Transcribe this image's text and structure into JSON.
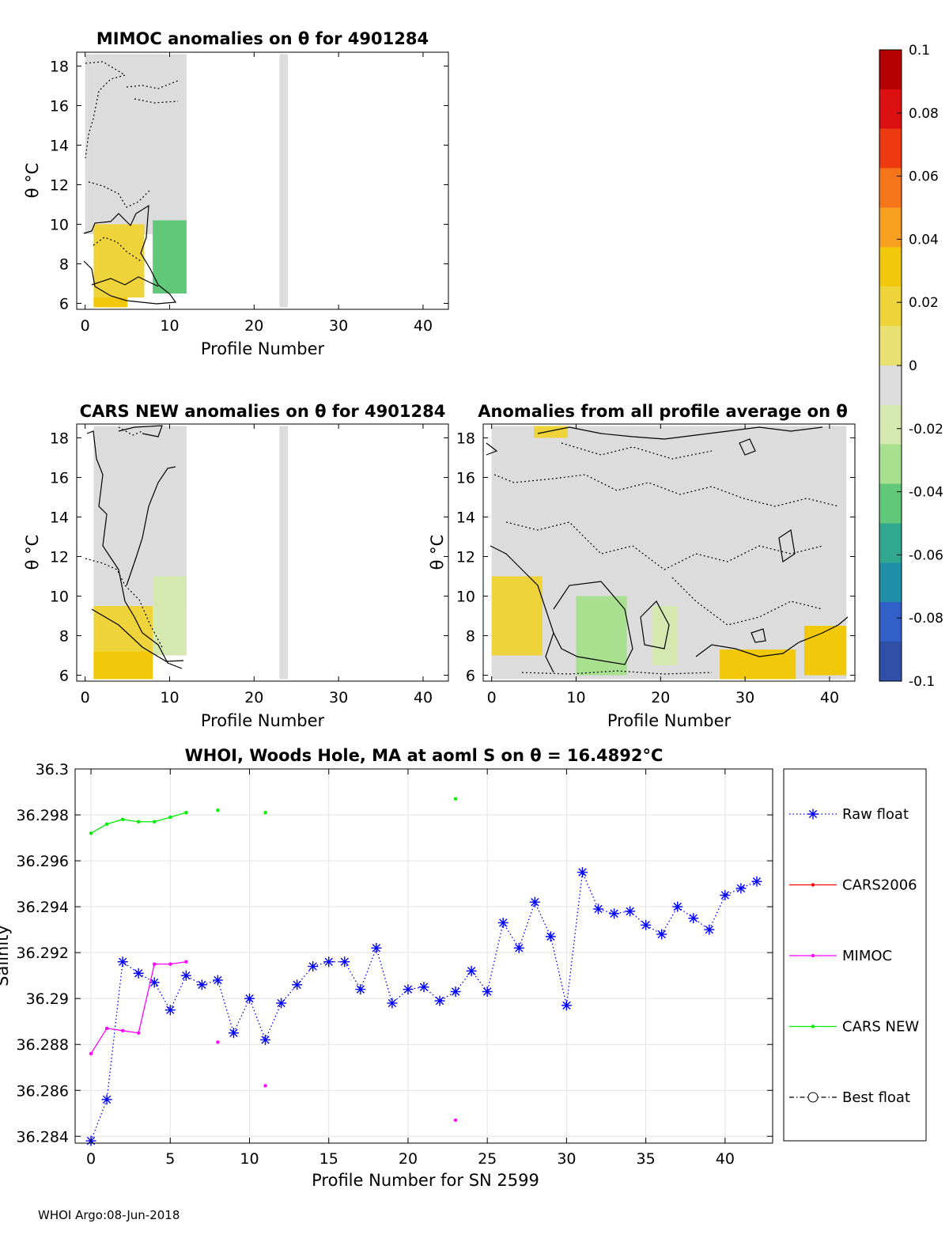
{
  "footer": "WHOI Argo:08-Jun-2018",
  "colorbar": {
    "ticks": [
      "0.1",
      "0.08",
      "0.06",
      "0.04",
      "0.02",
      "0",
      "-0.02",
      "-0.04",
      "-0.06",
      "-0.08",
      "-0.1"
    ],
    "colors": [
      "#b40000",
      "#dc1010",
      "#ee3a10",
      "#f67518",
      "#f9a020",
      "#f2c80a",
      "#eed33a",
      "#e8e070",
      "#dcdcdc",
      "#d4e8b0",
      "#a8e090",
      "#60c878",
      "#30a890",
      "#2090a8",
      "#3060c8",
      "#3050a8"
    ]
  },
  "chart_data": [
    {
      "id": "mimoc",
      "type": "heatmap",
      "title": "MIMOC anomalies on θ  for 4901284",
      "xlabel": "Profile Number",
      "ylabel": "θ °C",
      "xlim": [
        -1,
        43
      ],
      "ylim": [
        5.7,
        18.7
      ],
      "xticks": [
        "0",
        "10",
        "20",
        "30",
        "40"
      ],
      "yticks": [
        "6",
        "8",
        "10",
        "12",
        "14",
        "16",
        "18"
      ],
      "anomaly_regions": [
        {
          "x": [
            1,
            12
          ],
          "theta": [
            9.5,
            18.6
          ],
          "anomaly": 0.0
        },
        {
          "x": [
            0,
            1
          ],
          "theta": [
            9.5,
            18.6
          ],
          "anomaly": 0.0
        },
        {
          "x": [
            1,
            7
          ],
          "theta": [
            6.3,
            10.0
          ],
          "anomaly": 0.025
        },
        {
          "x": [
            1,
            5
          ],
          "theta": [
            5.8,
            6.3
          ],
          "anomaly": 0.035
        },
        {
          "x": [
            8,
            12
          ],
          "theta": [
            6.5,
            10.2
          ],
          "anomaly": -0.04
        },
        {
          "x": [
            23,
            24
          ],
          "theta": [
            5.8,
            18.6
          ],
          "anomaly": -0.01
        }
      ]
    },
    {
      "id": "cars",
      "type": "heatmap",
      "title": "CARS NEW anomalies on θ for 4901284",
      "xlabel": "Profile Number",
      "ylabel": "θ °C",
      "xlim": [
        -1,
        43
      ],
      "ylim": [
        5.7,
        18.7
      ],
      "xticks": [
        "0",
        "10",
        "20",
        "30",
        "40"
      ],
      "yticks": [
        "6",
        "8",
        "10",
        "12",
        "14",
        "16",
        "18"
      ],
      "anomaly_regions": [
        {
          "x": [
            1,
            12
          ],
          "theta": [
            9.5,
            18.6
          ],
          "anomaly": -0.005
        },
        {
          "x": [
            1,
            8
          ],
          "theta": [
            6.0,
            9.5
          ],
          "anomaly": 0.025
        },
        {
          "x": [
            1,
            8
          ],
          "theta": [
            5.8,
            7.2
          ],
          "anomaly": 0.035
        },
        {
          "x": [
            8,
            12
          ],
          "theta": [
            7.0,
            11.0
          ],
          "anomaly": -0.02
        },
        {
          "x": [
            23,
            24
          ],
          "theta": [
            5.8,
            18.6
          ],
          "anomaly": -0.01
        }
      ]
    },
    {
      "id": "allavg",
      "type": "heatmap",
      "title": "Anomalies from all profile average on θ",
      "xlabel": "Profile Number",
      "ylabel": "θ °C",
      "xlim": [
        -1,
        43
      ],
      "ylim": [
        5.7,
        18.7
      ],
      "xticks": [
        "0",
        "10",
        "20",
        "30",
        "40"
      ],
      "yticks": [
        "6",
        "8",
        "10",
        "12",
        "14",
        "16",
        "18"
      ],
      "anomaly_regions": [
        {
          "x": [
            0,
            42
          ],
          "theta": [
            5.8,
            18.6
          ],
          "anomaly": 0.0
        },
        {
          "x": [
            0,
            6
          ],
          "theta": [
            7.0,
            11.0
          ],
          "anomaly": 0.02
        },
        {
          "x": [
            10,
            16
          ],
          "theta": [
            6.0,
            10.0
          ],
          "anomaly": -0.03
        },
        {
          "x": [
            19,
            22
          ],
          "theta": [
            6.5,
            9.5
          ],
          "anomaly": -0.02
        },
        {
          "x": [
            27,
            36
          ],
          "theta": [
            5.8,
            7.3
          ],
          "anomaly": 0.035
        },
        {
          "x": [
            37,
            42
          ],
          "theta": [
            6.0,
            8.5
          ],
          "anomaly": 0.03
        },
        {
          "x": [
            5,
            9
          ],
          "theta": [
            18.0,
            18.6
          ],
          "anomaly": 0.02
        }
      ]
    },
    {
      "id": "salinity",
      "type": "line",
      "title": "WHOI, Woods Hole, MA at aoml S on θ = 16.4892°C",
      "xlabel": "Profile Number for SN 2599",
      "ylabel": "Salinity",
      "xlim": [
        -1,
        43
      ],
      "ylim": [
        36.2837,
        36.3
      ],
      "xticks": [
        "0",
        "5",
        "10",
        "15",
        "20",
        "25",
        "30",
        "35",
        "40"
      ],
      "yticks": [
        "36.284",
        "36.286",
        "36.288",
        "36.29",
        "36.292",
        "36.294",
        "36.296",
        "36.298",
        "36.3"
      ],
      "grid": true,
      "legend_placement": "right-outside",
      "series": [
        {
          "name": "Raw float",
          "color": "#0000ff",
          "marker": "asterisk",
          "line": "dotted",
          "x": [
            0,
            1,
            2,
            3,
            4,
            5,
            6,
            7,
            8,
            9,
            10,
            11,
            12,
            13,
            14,
            15,
            16,
            17,
            18,
            19,
            20,
            21,
            22,
            23,
            24,
            25,
            26,
            27,
            28,
            29,
            30,
            31,
            32,
            33,
            34,
            35,
            36,
            37,
            38,
            39,
            40,
            41,
            42
          ],
          "y": [
            36.2838,
            36.2856,
            36.2916,
            36.2911,
            36.2907,
            36.2895,
            36.291,
            36.2906,
            36.2908,
            36.2885,
            36.29,
            36.2882,
            36.2898,
            36.2906,
            36.2914,
            36.2916,
            36.2916,
            36.2904,
            36.2922,
            36.2898,
            36.2904,
            36.2905,
            36.2899,
            36.2903,
            36.2912,
            36.2903,
            36.2933,
            36.2922,
            36.2942,
            36.2927,
            36.2897,
            36.2955,
            36.2939,
            36.2937,
            36.2938,
            36.2932,
            36.2928,
            36.294,
            36.2935,
            36.293,
            36.2945,
            36.2948,
            36.2951
          ]
        },
        {
          "name": "CARS2006",
          "color": "#ff0000",
          "marker": "dot",
          "line": "solid",
          "x": [],
          "y": []
        },
        {
          "name": "MIMOC",
          "color": "#ff00ff",
          "marker": "dot",
          "line": "solid",
          "x": [
            0,
            1,
            2,
            3,
            4,
            5,
            6,
            8,
            11,
            23
          ],
          "y": [
            36.2876,
            36.2887,
            36.2886,
            36.2885,
            36.2915,
            36.2915,
            36.2916,
            36.2881,
            36.2862,
            36.2847
          ],
          "connected_through": 6
        },
        {
          "name": "CARS NEW",
          "color": "#00ee00",
          "marker": "dot",
          "line": "solid",
          "x": [
            0,
            1,
            2,
            3,
            4,
            5,
            6,
            8,
            11,
            23
          ],
          "y": [
            36.2972,
            36.2976,
            36.2978,
            36.2977,
            36.2977,
            36.2979,
            36.2981,
            36.2982,
            36.2981,
            36.2987
          ],
          "connected_through": 6
        },
        {
          "name": "Best float",
          "color": "#000000",
          "marker": "circle",
          "line": "dashdot",
          "x": [],
          "y": []
        }
      ]
    }
  ]
}
